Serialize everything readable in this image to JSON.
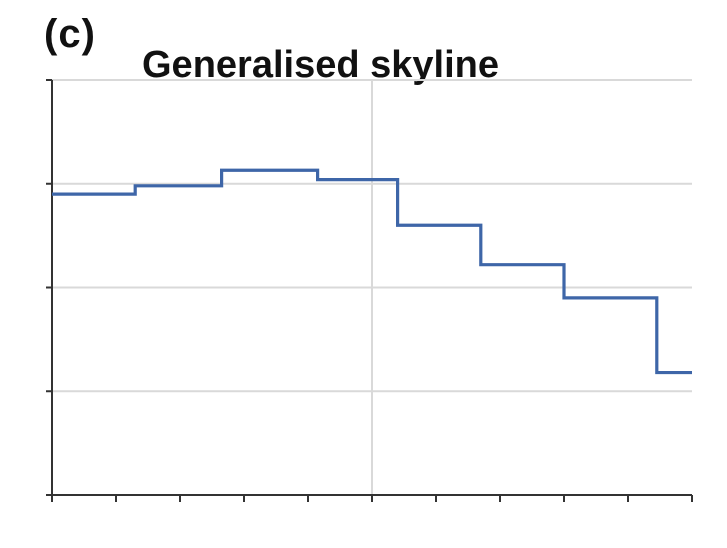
{
  "panel_label": "(c)",
  "chart_data": {
    "type": "line",
    "step": true,
    "title": "Generalised skyline",
    "xlabel": "",
    "ylabel": "",
    "xlim": [
      0,
      10
    ],
    "ylim": [
      0,
      4
    ],
    "x_tick_count": 11,
    "y_tick_count": 5,
    "grid": "horizontal",
    "vertical_reference_line_x": 5,
    "line_color": "#3e66a8",
    "grid_color": "#d9d9d9",
    "axis_color": "#333333",
    "series": [
      {
        "x": [
          0,
          1.3,
          2.65,
          4.15,
          5.4,
          6.7,
          8.0,
          9.45,
          10
        ],
        "values": [
          2.9,
          2.98,
          3.13,
          3.04,
          2.6,
          2.22,
          1.9,
          1.18,
          1.18
        ]
      }
    ]
  }
}
